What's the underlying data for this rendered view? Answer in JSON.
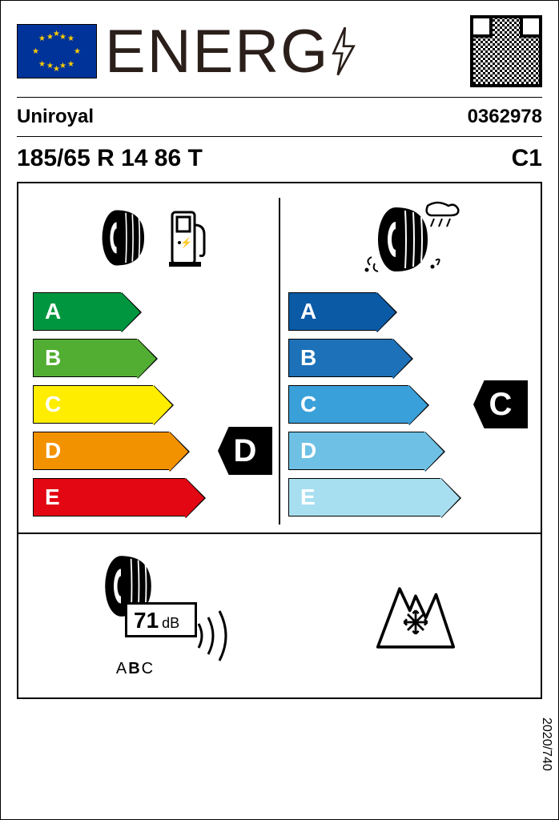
{
  "header": {
    "energy_text": "ENERG",
    "eu_flag_bg": "#003399",
    "eu_star_color": "#ffcc00"
  },
  "supplier": {
    "brand": "Uniroyal",
    "article": "0362978"
  },
  "tire": {
    "size": "185/65 R 14 86 T",
    "class": "C1"
  },
  "fuel": {
    "grades": [
      "A",
      "B",
      "C",
      "D",
      "E"
    ],
    "colors": [
      "#009640",
      "#52ae32",
      "#ffed00",
      "#f39200",
      "#e30613"
    ],
    "widths": [
      110,
      130,
      150,
      170,
      190
    ],
    "rating": "D",
    "rating_index": 3
  },
  "wet": {
    "grades": [
      "A",
      "B",
      "C",
      "D",
      "E"
    ],
    "colors": [
      "#0a5aa6",
      "#1d71b8",
      "#3aa0d9",
      "#6ec1e4",
      "#a8dff0"
    ],
    "widths": [
      110,
      130,
      150,
      170,
      190
    ],
    "rating": "C",
    "rating_index": 2
  },
  "noise": {
    "value": "71",
    "unit": "dB",
    "class": "B",
    "text_a": "A",
    "text_c": "C"
  },
  "snow": {
    "present": true
  },
  "regulation": "2020/740"
}
